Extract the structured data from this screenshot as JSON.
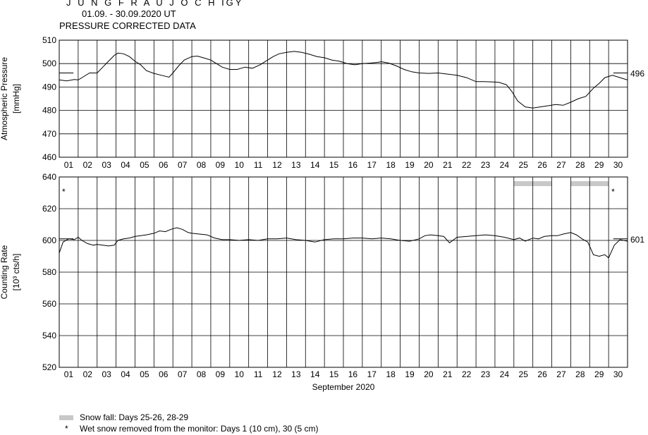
{
  "header": {
    "station": "J U N G F R A U J O C H  IGY",
    "period": "01.09. - 30.09.2020  UT",
    "subtitle": "PRESSURE CORRECTED DATA"
  },
  "legend": {
    "snow_fall": "Snow fall: Days 25-26, 28-29",
    "wet_snow_symbol": "*",
    "wet_snow": "Wet snow removed from the monitor: Days 1 (10 cm), 30 (5 cm)"
  },
  "chart_data": [
    {
      "type": "line",
      "ylabel": "Atmospheric Pressure",
      "yunit": "[mmHg]",
      "ylim": [
        460,
        510
      ],
      "yticks": [
        460,
        470,
        480,
        490,
        500,
        510
      ],
      "xlim": [
        1,
        31
      ],
      "x_tick_labels": [
        "01",
        "02",
        "03",
        "04",
        "05",
        "06",
        "07",
        "08",
        "09",
        "10",
        "11",
        "12",
        "13",
        "14",
        "15",
        "16",
        "17",
        "18",
        "19",
        "20",
        "21",
        "22",
        "23",
        "24",
        "25",
        "26",
        "27",
        "28",
        "29",
        "30"
      ],
      "grid": true,
      "reference_value": 496,
      "reference_label": "496",
      "color": "#000000",
      "series": [
        {
          "x": [
            1.0,
            1.4,
            1.8,
            2.0,
            2.3,
            2.6,
            3.0,
            3.3,
            3.6,
            3.9,
            4.1,
            4.4,
            4.7,
            5.0,
            5.3,
            5.6,
            6.0,
            6.4,
            6.8,
            7.0,
            7.3,
            7.6,
            8.0,
            8.3,
            8.6,
            9.0,
            9.3,
            9.6,
            10.0,
            10.4,
            10.8,
            11.2,
            11.6,
            12.0,
            12.3,
            12.6,
            13.0,
            13.4,
            13.8,
            14.2,
            14.6,
            15.0,
            15.4,
            15.8,
            16.2,
            16.6,
            17.0,
            17.4,
            17.8,
            18.0,
            18.4,
            18.8,
            19.2,
            19.6,
            20.0,
            20.5,
            21.0,
            21.5,
            22.0,
            22.5,
            23.0,
            23.4,
            23.8,
            24.2,
            24.6,
            24.9,
            25.2,
            25.6,
            26.0,
            26.4,
            26.8,
            27.2,
            27.6,
            28.0,
            28.4,
            28.8,
            29.2,
            29.5,
            29.8,
            30.2,
            30.6,
            31.0
          ],
          "y": [
            493,
            492.6,
            493.2,
            493,
            494.5,
            496,
            496,
            498.5,
            501,
            503.5,
            504.5,
            504.2,
            503,
            501,
            499.5,
            497,
            495.8,
            495,
            494.2,
            496,
            499,
            501.5,
            503,
            503.2,
            502.5,
            501.5,
            500,
            498.5,
            497.5,
            497.5,
            498.5,
            498,
            499.5,
            501.5,
            503,
            504.2,
            504.8,
            505.2,
            504.8,
            504,
            503,
            502.5,
            501.5,
            501,
            500,
            499.5,
            500,
            500.2,
            500.5,
            500.8,
            500.2,
            499,
            497.5,
            496.5,
            496,
            495.8,
            496,
            495.5,
            495,
            494,
            492.3,
            492.3,
            492.2,
            492,
            491,
            488,
            484,
            481.5,
            481,
            481.5,
            482,
            482.5,
            482.2,
            483.5,
            485,
            486,
            489.5,
            491.5,
            494,
            495,
            494,
            493
          ]
        }
      ]
    },
    {
      "type": "line",
      "ylabel": "Counting Rate",
      "yunit": "[10³ cts/h]",
      "ylim": [
        520,
        640
      ],
      "yticks": [
        520,
        540,
        560,
        580,
        600,
        620,
        640
      ],
      "xlim": [
        1,
        31
      ],
      "xlabel": "September 2020",
      "x_tick_labels": [
        "01",
        "02",
        "03",
        "04",
        "05",
        "06",
        "07",
        "08",
        "09",
        "10",
        "11",
        "12",
        "13",
        "14",
        "15",
        "16",
        "17",
        "18",
        "19",
        "20",
        "21",
        "22",
        "23",
        "24",
        "25",
        "26",
        "27",
        "28",
        "29",
        "30"
      ],
      "grid": true,
      "reference_value": 601,
      "reference_label": "601",
      "color": "#000000",
      "snow_fall_periods": [
        [
          25,
          27
        ],
        [
          28,
          30
        ]
      ],
      "wet_snow_markers": [
        {
          "x": 1,
          "label": "*"
        },
        {
          "x": 30,
          "label": "*"
        }
      ],
      "series": [
        {
          "x": [
            1.0,
            1.2,
            1.5,
            1.8,
            2.0,
            2.2,
            2.5,
            2.8,
            3.0,
            3.3,
            3.6,
            3.9,
            4.1,
            4.4,
            4.7,
            5.0,
            5.3,
            5.6,
            6.0,
            6.3,
            6.6,
            6.9,
            7.2,
            7.5,
            7.8,
            8.0,
            8.4,
            8.8,
            9.2,
            9.6,
            10.0,
            10.5,
            11.0,
            11.5,
            12.0,
            12.5,
            13.0,
            13.5,
            14.0,
            14.5,
            15.0,
            15.5,
            16.0,
            16.5,
            17.0,
            17.5,
            18.0,
            18.5,
            19.0,
            19.5,
            20.0,
            20.3,
            20.6,
            21.0,
            21.3,
            21.6,
            22.0,
            22.5,
            23.0,
            23.5,
            24.0,
            24.5,
            25.0,
            25.3,
            25.6,
            26.0,
            26.3,
            26.6,
            27.0,
            27.3,
            27.6,
            28.0,
            28.3,
            28.6,
            28.9,
            29.2,
            29.5,
            29.8,
            30.0,
            30.3,
            30.6,
            31.0
          ],
          "y": [
            592,
            599,
            601,
            600.5,
            602,
            600,
            598,
            597,
            597.5,
            597,
            596.5,
            597,
            600,
            601,
            601.5,
            602.5,
            603,
            603.5,
            604.5,
            606,
            605.5,
            607,
            608,
            607,
            605,
            604.5,
            604,
            603.5,
            601.5,
            600.5,
            600.5,
            600,
            600.5,
            600,
            601,
            601,
            601.5,
            600.5,
            600,
            599,
            600.5,
            601,
            601,
            601.5,
            601.5,
            601,
            601.5,
            601,
            600,
            599.5,
            601,
            603,
            603.5,
            603,
            602.5,
            598.5,
            602,
            602.5,
            603,
            603.5,
            603,
            602,
            600.5,
            601.5,
            599.5,
            601.5,
            601,
            602.5,
            603,
            603,
            604,
            605,
            603.5,
            601,
            599,
            591,
            590,
            591,
            589,
            597,
            600.5,
            599.5
          ]
        }
      ]
    }
  ]
}
